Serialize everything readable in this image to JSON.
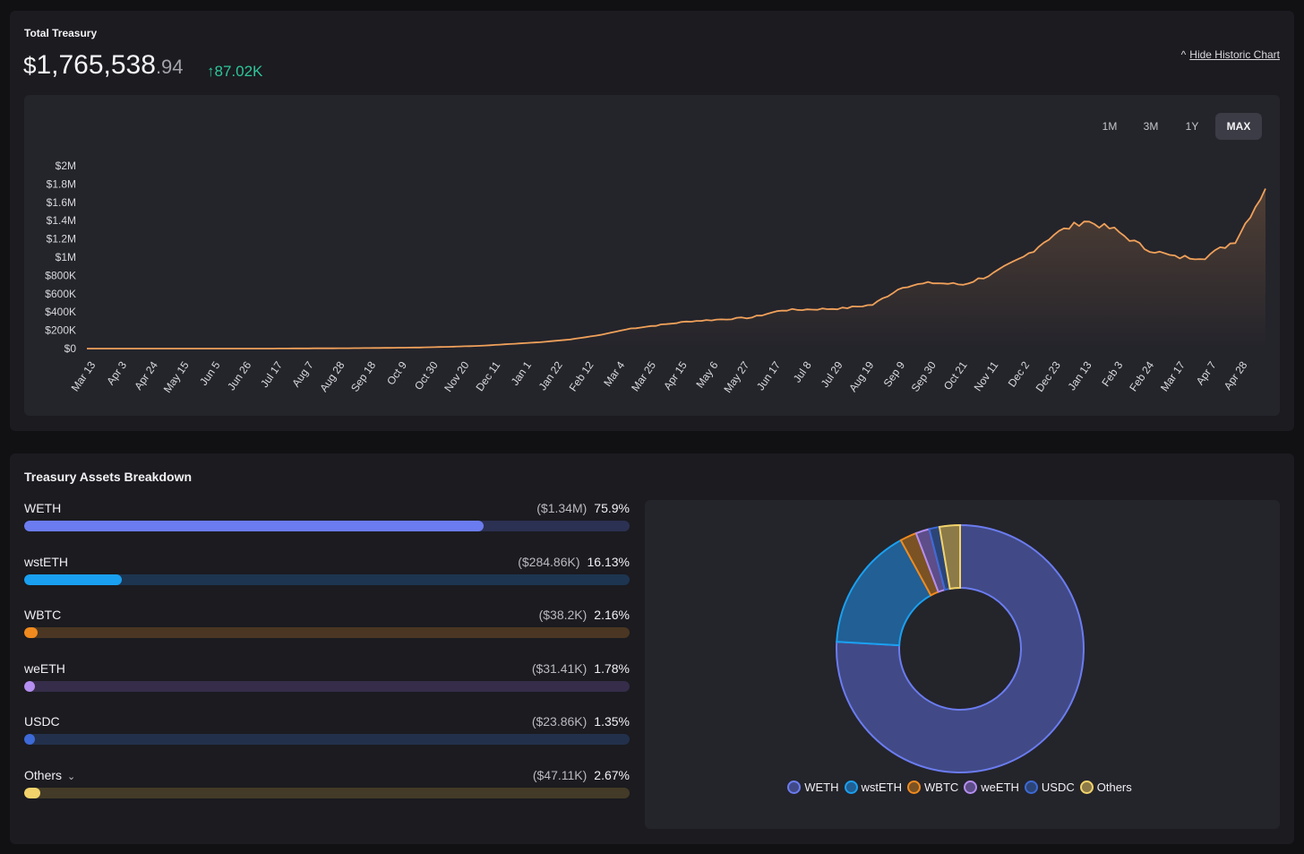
{
  "treasury": {
    "title": "Total Treasury",
    "dollar_sign": "$",
    "value_main": "1,765,538",
    "value_cents": ".94",
    "change": "87.02K",
    "change_arrow": "↑",
    "hide_chart_label": "Hide Historic Chart",
    "hide_chart_arrow": "^"
  },
  "ranges": [
    {
      "label": "1M",
      "active": false
    },
    {
      "label": "3M",
      "active": false
    },
    {
      "label": "1Y",
      "active": false
    },
    {
      "label": "MAX",
      "active": true
    }
  ],
  "chart_data": {
    "type": "area",
    "y_ticks": [
      "$0",
      "$200K",
      "$400K",
      "$600K",
      "$800K",
      "$1M",
      "$1.2M",
      "$1.4M",
      "$1.6M",
      "$1.8M",
      "$2M"
    ],
    "ylim": [
      0,
      2000000
    ],
    "x_ticks": [
      "Mar 13",
      "Apr 3",
      "Apr 24",
      "May 15",
      "Jun 5",
      "Jun 26",
      "Jul 17",
      "Aug 7",
      "Aug 28",
      "Sep 18",
      "Oct 9",
      "Oct 30",
      "Nov 20",
      "Dec 11",
      "Jan 1",
      "Jan 22",
      "Feb 12",
      "Mar 4",
      "Mar 25",
      "Apr 15",
      "May 6",
      "May 27",
      "Jun 17",
      "Jul 8",
      "Jul 29",
      "Aug 19",
      "Sep 9",
      "Sep 30",
      "Oct 21",
      "Nov 11",
      "Dec 2",
      "Dec 23",
      "Jan 13",
      "Feb 3",
      "Feb 24",
      "Mar 17",
      "Apr 7",
      "Apr 28"
    ],
    "series": [
      {
        "color": "#f0a15a",
        "values": [
          0,
          0,
          0,
          0,
          0,
          0,
          0,
          2000,
          3000,
          5000,
          8000,
          12000,
          20000,
          30000,
          50000,
          70000,
          100000,
          150000,
          220000,
          260000,
          300000,
          320000,
          340000,
          420000,
          430000,
          440000,
          480000,
          680000,
          720000,
          700000,
          820000,
          1000000,
          1250000,
          1400000,
          1300000,
          1100000,
          1000000,
          1000000,
          1180000,
          1750000
        ]
      }
    ],
    "grid": false
  },
  "breakdown": {
    "title": "Treasury Assets Breakdown",
    "assets": [
      {
        "name": "WETH",
        "amount": "($1.34M)",
        "pct": "75.9%",
        "pct_value": 75.9,
        "color": "#6b7cf0",
        "track": "#2b3152"
      },
      {
        "name": "wstETH",
        "amount": "($284.86K)",
        "pct": "16.13%",
        "pct_value": 16.13,
        "color": "#1aa0f0",
        "track": "#1d3550"
      },
      {
        "name": "WBTC",
        "amount": "($38.2K)",
        "pct": "2.16%",
        "pct_value": 2.16,
        "color": "#f08a1e",
        "track": "#4a3622"
      },
      {
        "name": "weETH",
        "amount": "($31.41K)",
        "pct": "1.78%",
        "pct_value": 1.78,
        "color": "#b48ef0",
        "track": "#362d4a"
      },
      {
        "name": "USDC",
        "amount": "($23.86K)",
        "pct": "1.35%",
        "pct_value": 1.35,
        "color": "#3d6ad6",
        "track": "#23304c"
      },
      {
        "name": "Others",
        "amount": "($47.11K)",
        "pct": "2.67%",
        "pct_value": 2.67,
        "color": "#f2d36b",
        "track": "#433b27"
      }
    ],
    "others_chevron": "⌄"
  },
  "donut": {
    "slices": [
      {
        "name": "WETH",
        "pct": 75.9,
        "fill": "#414a86",
        "stroke": "#6b7cf0"
      },
      {
        "name": "wstETH",
        "pct": 16.13,
        "fill": "#215f94",
        "stroke": "#1aa0f0"
      },
      {
        "name": "WBTC",
        "pct": 2.16,
        "fill": "#7a5224",
        "stroke": "#f08a1e"
      },
      {
        "name": "weETH",
        "pct": 1.78,
        "fill": "#5d4d88",
        "stroke": "#b48ef0"
      },
      {
        "name": "USDC",
        "pct": 1.35,
        "fill": "#2c4577",
        "stroke": "#3d6ad6"
      },
      {
        "name": "Others",
        "pct": 2.67,
        "fill": "#8c7a48",
        "stroke": "#f2d36b"
      }
    ]
  }
}
